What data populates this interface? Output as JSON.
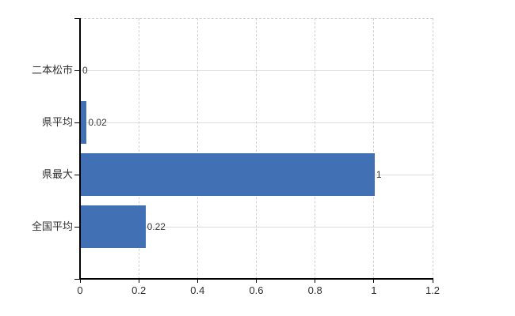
{
  "chart_data": {
    "type": "bar",
    "orientation": "horizontal",
    "categories": [
      "二本松市",
      "県平均",
      "県最大",
      "全国平均"
    ],
    "values": [
      0,
      0.02,
      1,
      0.22
    ],
    "value_labels": [
      "0",
      "0.02",
      "1",
      "0.22"
    ],
    "x_ticks": [
      0,
      0.2,
      0.4,
      0.6,
      0.8,
      1,
      1.2
    ],
    "x_tick_labels": [
      "0",
      "0.2",
      "0.4",
      "0.6",
      "0.8",
      "1",
      "1.2"
    ],
    "xlim": [
      0,
      1.2
    ],
    "bar_color": "#4170b4",
    "grid": true,
    "legend": "none"
  },
  "colors": {
    "background": "#ffffff",
    "axis": "#000000",
    "horizontal_grid": "#d9ded8",
    "vertical_grid": "#d2cdd2",
    "text": "#303030"
  }
}
